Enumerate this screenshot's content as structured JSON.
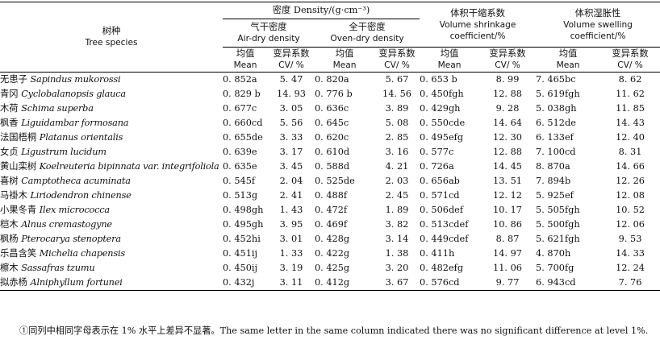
{
  "header": {
    "species_cn": "树种",
    "species_en": "Tree species",
    "density_group": "密度 Density/(g·cm⁻³)",
    "air_dry_cn": "气干密度",
    "air_dry_en": "Air-dry density",
    "oven_dry_cn": "全干密度",
    "oven_dry_en": "Oven-dry density",
    "shrink_cn": "体积干缩系数",
    "shrink_en1": "Volume shrinkage",
    "shrink_en2": "coefficient/%",
    "swell_cn": "体积湿胀性",
    "swell_en1": "Volume swelling",
    "swell_en2": "coefficient/%",
    "mean_cn": "均值",
    "mean_en": "Mean",
    "cv_cn": "变异系数",
    "cv_en": "CV/ %"
  },
  "rows": [
    {
      "cn": "无患子",
      "latin": "Sapindus mukorossi",
      "air_mean": "0. 852a",
      "air_cv": "5. 47",
      "oven_mean": "0. 820a",
      "oven_cv": "5. 67",
      "shr_mean": "0. 653 b",
      "shr_cv": "8. 99",
      "sw_mean": "7. 465bc",
      "sw_cv": "8. 62"
    },
    {
      "cn": "青冈",
      "latin": "Cyclobalanopsis glauca",
      "air_mean": "0. 829 b",
      "air_cv": "14. 93",
      "oven_mean": "0. 776 b",
      "oven_cv": "14. 56",
      "shr_mean": "0. 450fgh",
      "shr_cv": "12. 88",
      "sw_mean": "5. 619fgh",
      "sw_cv": "11. 62"
    },
    {
      "cn": "木荷",
      "latin": "Schima superba",
      "air_mean": "0. 677c",
      "air_cv": "3. 05",
      "oven_mean": "0. 636c",
      "oven_cv": "3. 89",
      "shr_mean": "0. 429gh",
      "shr_cv": "9. 28",
      "sw_mean": "5. 038gh",
      "sw_cv": "11. 85"
    },
    {
      "cn": "枫香",
      "latin": "Liguidambar formosana",
      "air_mean": "0. 660cd",
      "air_cv": "5. 56",
      "oven_mean": "0. 645c",
      "oven_cv": "5. 08",
      "shr_mean": "0. 550cde",
      "shr_cv": "14. 64",
      "sw_mean": "6. 512de",
      "sw_cv": "14. 43"
    },
    {
      "cn": "法国梧桐",
      "latin": "Platanus orientalis",
      "air_mean": "0. 655de",
      "air_cv": "3. 33",
      "oven_mean": "0. 620c",
      "oven_cv": "2. 85",
      "shr_mean": "0. 495efg",
      "shr_cv": "12. 30",
      "sw_mean": "6. 133ef",
      "sw_cv": "12. 40"
    },
    {
      "cn": "女贞",
      "latin": "Ligustrum lucidum",
      "air_mean": "0. 639e",
      "air_cv": "3. 17",
      "oven_mean": "0. 610d",
      "oven_cv": "3. 16",
      "shr_mean": "0. 577c",
      "shr_cv": "12. 88",
      "sw_mean": "7. 100cd",
      "sw_cv": "8. 31"
    },
    {
      "cn": "黄山栾树",
      "latin": "Koelreuteria bipinnata var. integrifoliola",
      "air_mean": "0. 635e",
      "air_cv": "3. 45",
      "oven_mean": "0. 588d",
      "oven_cv": "4. 21",
      "shr_mean": "0. 726a",
      "shr_cv": "14. 45",
      "sw_mean": "8. 870a",
      "sw_cv": "14. 66"
    },
    {
      "cn": "喜树",
      "latin": "Camptotheca acuminata",
      "air_mean": "0. 545f",
      "air_cv": "2. 04",
      "oven_mean": "0. 525de",
      "oven_cv": "2. 03",
      "shr_mean": "0. 656ab",
      "shr_cv": "13. 51",
      "sw_mean": "7. 894b",
      "sw_cv": "12. 26"
    },
    {
      "cn": "马褂木",
      "latin": "Liriodendron chinense",
      "air_mean": "0. 513g",
      "air_cv": "2. 41",
      "oven_mean": "0. 488f",
      "oven_cv": "2. 45",
      "shr_mean": "0. 571cd",
      "shr_cv": "12. 12",
      "sw_mean": "5. 925ef",
      "sw_cv": "12. 08"
    },
    {
      "cn": "小果冬青",
      "latin": "Ilex micrococca",
      "air_mean": "0. 498gh",
      "air_cv": "1. 43",
      "oven_mean": "0. 472f",
      "oven_cv": "1. 89",
      "shr_mean": "0. 506def",
      "shr_cv": "10. 17",
      "sw_mean": "5. 505fgh",
      "sw_cv": "10. 52"
    },
    {
      "cn": "桤木",
      "latin": "Alnus cremastogyne",
      "air_mean": "0. 495gh",
      "air_cv": "3. 95",
      "oven_mean": "0. 469f",
      "oven_cv": "3. 82",
      "shr_mean": "0. 513cdef",
      "shr_cv": "10. 86",
      "sw_mean": "5. 500fgh",
      "sw_cv": "12. 06"
    },
    {
      "cn": "枫杨",
      "latin": "Pterocarya stenoptera",
      "air_mean": "0. 452hi",
      "air_cv": "3. 01",
      "oven_mean": "0. 428g",
      "oven_cv": "3. 14",
      "shr_mean": "0. 449cdef",
      "shr_cv": "8. 87",
      "sw_mean": "5. 621fgh",
      "sw_cv": "9. 53"
    },
    {
      "cn": "乐昌含笑",
      "latin": "Michelia chapensis",
      "air_mean": "0. 451ij",
      "air_cv": "1. 33",
      "oven_mean": "0. 422g",
      "oven_cv": "1. 38",
      "shr_mean": "0. 411h",
      "shr_cv": "14. 97",
      "sw_mean": "4. 870h",
      "sw_cv": "14. 33"
    },
    {
      "cn": "檫木",
      "latin": "Sassafras tzumu",
      "air_mean": "0. 450ij",
      "air_cv": "3. 19",
      "oven_mean": "0. 425g",
      "oven_cv": "3. 20",
      "shr_mean": "0. 482efg",
      "shr_cv": "11. 06",
      "sw_mean": "5. 700fg",
      "sw_cv": "12. 24"
    },
    {
      "cn": "拟赤杨",
      "latin": "Alniphyllum fortunei",
      "air_mean": "0. 432j",
      "air_cv": "3. 11",
      "oven_mean": "0. 412g",
      "oven_cv": "3. 67",
      "shr_mean": "0. 576cd",
      "shr_cv": "9. 77",
      "sw_mean": "6. 943cd",
      "sw_cv": "7. 76"
    }
  ],
  "footnote": "①同列中相同字母表示在 1% 水平上差异不显著。The same letter in the same column indicated there was no significant difference at level 1%."
}
